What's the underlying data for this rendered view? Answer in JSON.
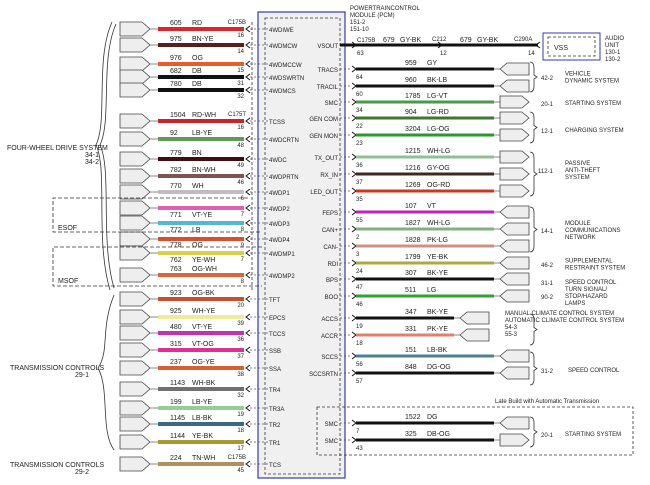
{
  "pcm": {
    "title_lines": [
      "POWERTRAINCONTROL",
      "MODULE (PCM)",
      "151-2",
      "151-10"
    ]
  },
  "left_wires": [
    {
      "circuit": "605",
      "color": "RD",
      "hex": "#d8262b",
      "pin": "16",
      "pcm_pin": "4WDIWE",
      "connector": "C175B"
    },
    {
      "circuit": "975",
      "color": "BN-YE",
      "hex": "#5a1f1a",
      "pin": "14",
      "pcm_pin": "4WDMCW"
    },
    {
      "circuit": "976",
      "color": "OG",
      "hex": "#e2602c",
      "pin": "15",
      "pcm_pin": "4WDMCCW"
    },
    {
      "circuit": "682",
      "color": "DB",
      "hex": "#111111",
      "pin": "31",
      "pcm_pin": "4WDSWRTN"
    },
    {
      "circuit": "780",
      "color": "DB",
      "hex": "#111111",
      "pin": "32",
      "pcm_pin": "4WDMCS"
    },
    {
      "circuit": "1504",
      "color": "RD-WH",
      "hex": "#c8262b",
      "pin": "16",
      "pcm_pin": "TCSS",
      "connector": "C175T"
    },
    {
      "circuit": "92",
      "color": "LB-YE",
      "hex": "#5f9a5a",
      "pin": "48",
      "pcm_pin": "4WDCRTN"
    },
    {
      "circuit": "779",
      "color": "BN",
      "hex": "#3f0f10",
      "pin": "49",
      "pcm_pin": "4WDC"
    },
    {
      "circuit": "782",
      "color": "BN-WH",
      "hex": "#7e5450",
      "pin": "46",
      "pcm_pin": "4WDPRTN"
    },
    {
      "circuit": "770",
      "color": "WH",
      "hex": "#bdbdbd",
      "pin": "6",
      "pcm_pin": "4WDP1"
    },
    {
      "circuit": "771",
      "color": "VT-YE",
      "hex": "#e060b0",
      "pin": "7",
      "pcm_pin": "4WDP2"
    },
    {
      "circuit": "772",
      "color": "LB",
      "hex": "#52b8d0",
      "pin": "8",
      "pcm_pin": "4WDP3"
    },
    {
      "circuit": "778",
      "color": "OG",
      "hex": "#d8502a",
      "pin": "9",
      "pcm_pin": "4WDP4"
    },
    {
      "circuit": "762",
      "color": "YE-WH",
      "hex": "#d8d04a",
      "pin": "7",
      "pcm_pin": "4WDMP1"
    },
    {
      "circuit": "763",
      "color": "OG-WH",
      "hex": "#d8683a",
      "pin": "8",
      "pcm_pin": "4WDMP2"
    },
    {
      "circuit": "923",
      "color": "OG-BK",
      "hex": "#c85028",
      "pin": "20",
      "pcm_pin": "TFT"
    },
    {
      "circuit": "925",
      "color": "WH-YE",
      "hex": "#eeeaa0",
      "pin": "39",
      "pcm_pin": "EPCS"
    },
    {
      "circuit": "480",
      "color": "VT-YE",
      "hex": "#c830a8",
      "pin": "36",
      "pcm_pin": "TCCS"
    },
    {
      "circuit": "315",
      "color": "VT-OG",
      "hex": "#e03098",
      "pin": "37",
      "pcm_pin": "SSB"
    },
    {
      "circuit": "237",
      "color": "OG-YE",
      "hex": "#d8602a",
      "pin": "38",
      "pcm_pin": "SSA"
    },
    {
      "circuit": "1143",
      "color": "WH-BK",
      "hex": "#707070",
      "pin": "32",
      "pcm_pin": "TR4"
    },
    {
      "circuit": "199",
      "color": "LB-YE",
      "hex": "#90d090",
      "pin": "19",
      "pcm_pin": "TR3A"
    },
    {
      "circuit": "1145",
      "color": "LB-BK",
      "hex": "#3a6a80",
      "pin": "18",
      "pcm_pin": "TR2"
    },
    {
      "circuit": "1144",
      "color": "YE-BK",
      "hex": "#a89a30",
      "pin": "17",
      "pcm_pin": "TR1"
    },
    {
      "circuit": "224",
      "color": "TN-WH",
      "hex": "#b09060",
      "pin": "45",
      "pcm_pin": "TCS",
      "connector": "C175B"
    }
  ],
  "vss": {
    "pcm_pin": "VSOUT",
    "pin": "63",
    "connector1": "C175B",
    "circuit": "679",
    "color": "GY-BK",
    "connector2": "C212",
    "pin2": "12",
    "connector3": "C290A",
    "pin3": "14",
    "box_label": "VSS",
    "dest": [
      "AUDIO",
      "UNIT",
      "130-1",
      "130-2"
    ]
  },
  "right_wires": [
    {
      "circuit": "959",
      "color": "GY",
      "hex": "#111111",
      "pin": "64",
      "pcm_pin": "TRACS"
    },
    {
      "circuit": "960",
      "color": "BK-LB",
      "hex": "#111111",
      "pin": "60",
      "pcm_pin": "TRACIL"
    },
    {
      "circuit": "1785",
      "color": "LG-VT",
      "hex": "#4a9a4a",
      "pin": "34",
      "pcm_pin": "SMC"
    },
    {
      "circuit": "904",
      "color": "LG-RD",
      "hex": "#3a7a2a",
      "pin": "22",
      "pcm_pin": "GEN COM"
    },
    {
      "circuit": "3204",
      "color": "LG-OG",
      "hex": "#2a9a2a",
      "pin": "23",
      "pcm_pin": "GEN MON"
    },
    {
      "circuit": "1215",
      "color": "WH-LG",
      "hex": "#90c090",
      "pin": "36",
      "pcm_pin": "TX_OUT"
    },
    {
      "circuit": "1216",
      "color": "GY-OG",
      "hex": "#3a2a20",
      "pin": "37",
      "pcm_pin": "RX_IN"
    },
    {
      "circuit": "1269",
      "color": "OG-RD",
      "hex": "#c83a20",
      "pin": "35",
      "pcm_pin": "LED_OUT"
    },
    {
      "circuit": "107",
      "color": "VT",
      "hex": "#c020c0",
      "pin": "55",
      "pcm_pin": "FEPS"
    },
    {
      "circuit": "1827",
      "color": "WH-LG",
      "hex": "#80b080",
      "pin": "2",
      "pcm_pin": "CAN+"
    },
    {
      "circuit": "1828",
      "color": "PK-LG",
      "hex": "#d09080",
      "pin": "3",
      "pcm_pin": "CAN-"
    },
    {
      "circuit": "1799",
      "color": "YE-BK",
      "hex": "#b0a840",
      "pin": "24",
      "pcm_pin": "RDI"
    },
    {
      "circuit": "307",
      "color": "BK-YE",
      "hex": "#111111",
      "pin": "47",
      "pcm_pin": "BPS"
    },
    {
      "circuit": "511",
      "color": "LG",
      "hex": "#30a030",
      "pin": "46",
      "pcm_pin": "BOO"
    },
    {
      "circuit": "347",
      "color": "BK-YE",
      "hex": "#111111",
      "pin": "19",
      "pcm_pin": "ACCS"
    },
    {
      "circuit": "331",
      "color": "PK-YE",
      "hex": "#e08070",
      "pin": "18",
      "pcm_pin": "ACCR"
    },
    {
      "circuit": "151",
      "color": "LB-BK",
      "hex": "#4a8090",
      "pin": "56",
      "pcm_pin": "SCCS"
    },
    {
      "circuit": "848",
      "color": "DG-OG",
      "hex": "#111111",
      "pin": "57",
      "pcm_pin": "SCCSRTN"
    },
    {
      "circuit": "1522",
      "color": "DG",
      "hex": "#111111",
      "pin": "7",
      "pcm_pin": "SMC"
    },
    {
      "circuit": "325",
      "color": "DB-OG",
      "hex": "#111111",
      "pin": "43",
      "pcm_pin": "SMC"
    }
  ],
  "right_systems": [
    {
      "code": "42-2",
      "name": [
        "VEHICLE",
        "DYNAMIC SYSTEM"
      ]
    },
    {
      "code": "20-1",
      "name": [
        "STARTING SYSTEM"
      ]
    },
    {
      "code": "12-1",
      "name": [
        "CHARGING SYSTEM"
      ]
    },
    {
      "code": "112-1",
      "name": [
        "PASSIVE",
        "ANTI-THEFT",
        "SYSTEM"
      ]
    },
    {
      "code": "14-1",
      "name": [
        "MODULE",
        "COMMUNICATIONS",
        "NETWORK"
      ]
    },
    {
      "code": "46-2",
      "name": [
        "SUPPLEMENTAL",
        "RESTRAINT SYSTEM"
      ]
    },
    {
      "code": "31-1",
      "name": [
        "SPEED CONTROL"
      ]
    },
    {
      "code": "90-2",
      "name": [
        "TURN SIGNAL/",
        "STOP/HAZARD",
        "LAMPS"
      ]
    },
    {
      "code": "",
      "name": [
        "MANUAL CLIMATE CONTROL SYSTEM",
        "AUTOMATIC CLIMATE CONTROL SYSTEM",
        "54-3",
        "55-3"
      ]
    },
    {
      "code": "31-2",
      "name": [
        "SPEED CONTROL"
      ]
    },
    {
      "code": "20-1",
      "name": [
        "STARTING SYSTEM"
      ]
    }
  ],
  "late_build_label": "Late Build with Automatic Transmission",
  "left_systems": [
    {
      "name": "FOUR-WHEEL DRIVE SYSTEM",
      "codes": [
        "34-1",
        "34-2"
      ]
    },
    {
      "name": "ESOF",
      "codes": []
    },
    {
      "name": "MSOF",
      "codes": []
    },
    {
      "name": "TRANSMISSION CONTROLS",
      "codes": [
        "29-1"
      ]
    },
    {
      "name": "TRANSMISSION CONTROLS",
      "codes": [
        "29-2"
      ]
    }
  ]
}
